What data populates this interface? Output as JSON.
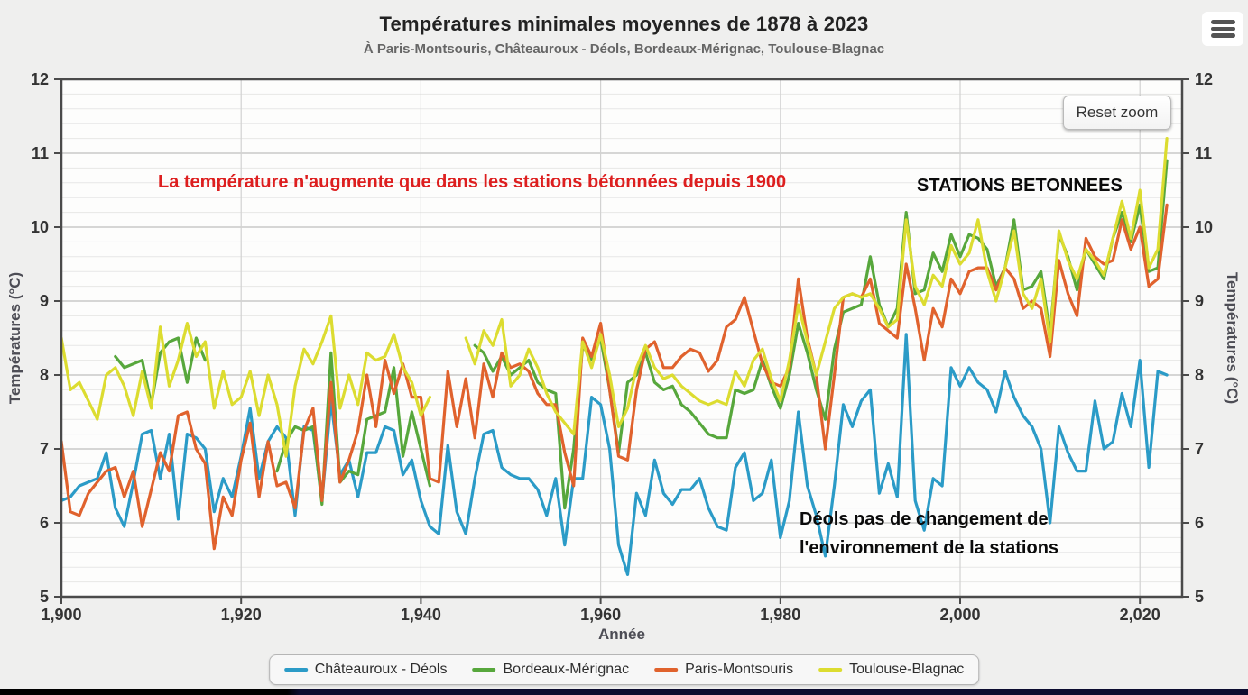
{
  "header": {
    "title": "Températures minimales moyennes de 1878 à 2023",
    "subtitle": "À Paris-Montsouris, Châteauroux - Déols, Bordeaux-Mérignac, Toulouse-Blagnac"
  },
  "icons": {
    "menu": "hamburger-menu"
  },
  "toolbar": {
    "reset_zoom_label": "Reset zoom"
  },
  "annotations": {
    "red_note": "La température n'augmente que dans les stations bétonnées depuis 1900",
    "stations_note": "STATIONS BETONNEES",
    "deols_note_line1": "Déols  pas de changement de",
    "deols_note_line2": "l'environnement de la stations"
  },
  "colors": {
    "annotation_red": "#dd1f1f",
    "annotation_black": "#0b0b0b",
    "bottom_bar": "#0c0c30",
    "axis": "#4a4a4a"
  },
  "legend": {
    "items": [
      {
        "label": "Châteauroux - Déols",
        "color": "#2b9bc7"
      },
      {
        "label": "Bordeaux-Mérignac",
        "color": "#57a73c"
      },
      {
        "label": "Paris-Montsouris",
        "color": "#e0622d"
      },
      {
        "label": "Toulouse-Blagnac",
        "color": "#dcdc30"
      }
    ]
  },
  "chart_data": {
    "type": "line",
    "title": "Températures minimales moyennes de 1878 à 2023",
    "subtitle": "À Paris-Montsouris, Châteauroux - Déols, Bordeaux-Mérignac, Toulouse-Blagnac",
    "xlabel": "Année",
    "ylabel_left": "Températures (°C)",
    "ylabel_right": "Températures (°C)",
    "xlim": [
      1900,
      2024.7
    ],
    "ylim": [
      5,
      12
    ],
    "grid": {
      "y_minor_step": 0.2,
      "y_major_step": 1,
      "x_major_step": 20
    },
    "legend_position": "bottom",
    "y_ticks": [
      5,
      6,
      7,
      8,
      9,
      10,
      11,
      12
    ],
    "x_ticks": [
      {
        "value": 1900,
        "label": "1,900"
      },
      {
        "value": 1920,
        "label": "1,920"
      },
      {
        "value": 1940,
        "label": "1,940"
      },
      {
        "value": 1960,
        "label": "1,960"
      },
      {
        "value": 1980,
        "label": "1,980"
      },
      {
        "value": 2000,
        "label": "2,000"
      },
      {
        "value": 2020,
        "label": "2,020"
      }
    ],
    "year_start": 1900,
    "year_end": 2023,
    "series": [
      {
        "name": "Châteauroux - Déols",
        "color": "#2b9bc7",
        "values": [
          6.3,
          6.35,
          6.5,
          6.55,
          6.6,
          6.95,
          6.2,
          5.95,
          6.55,
          7.2,
          7.25,
          6.6,
          7.2,
          6.05,
          7.2,
          7.15,
          7.0,
          6.15,
          6.6,
          6.35,
          6.9,
          7.55,
          6.6,
          7.1,
          7.3,
          7.15,
          6.1,
          7.3,
          7.25,
          6.3,
          7.65,
          6.65,
          6.85,
          6.35,
          6.95,
          6.95,
          7.3,
          7.25,
          6.65,
          6.85,
          6.3,
          5.95,
          5.85,
          7.05,
          6.15,
          5.85,
          6.6,
          7.2,
          7.25,
          6.75,
          6.65,
          6.6,
          6.6,
          6.45,
          6.1,
          6.6,
          5.7,
          6.6,
          6.6,
          7.7,
          7.6,
          7.0,
          5.7,
          5.3,
          6.4,
          6.1,
          6.85,
          6.4,
          6.25,
          6.45,
          6.45,
          6.6,
          6.2,
          5.95,
          5.9,
          6.75,
          6.95,
          6.3,
          6.4,
          6.85,
          5.8,
          6.3,
          7.5,
          6.5,
          6.1,
          5.55,
          6.5,
          7.6,
          7.3,
          7.65,
          7.8,
          6.4,
          6.8,
          6.35,
          8.55,
          6.3,
          5.9,
          6.6,
          6.5,
          8.1,
          7.85,
          8.1,
          7.9,
          7.8,
          7.5,
          8.05,
          7.7,
          7.45,
          7.3,
          7.0,
          6.0,
          7.3,
          6.95,
          6.7,
          6.7,
          7.65,
          7.0,
          7.1,
          7.75,
          7.3,
          8.2,
          6.75,
          8.05,
          8.0
        ]
      },
      {
        "name": "Bordeaux-Mérignac",
        "color": "#57a73c",
        "values": [
          null,
          null,
          null,
          null,
          null,
          null,
          8.25,
          8.1,
          8.15,
          8.2,
          7.6,
          8.3,
          8.45,
          8.5,
          7.9,
          8.5,
          8.2,
          null,
          null,
          null,
          null,
          null,
          null,
          null,
          6.7,
          7.1,
          7.3,
          7.25,
          7.3,
          6.25,
          8.3,
          6.55,
          6.7,
          6.65,
          7.4,
          7.45,
          7.5,
          8.1,
          6.9,
          7.5,
          7.0,
          6.5,
          null,
          null,
          null,
          null,
          8.4,
          8.3,
          8.05,
          8.25,
          8.0,
          8.1,
          8.2,
          7.9,
          7.8,
          7.75,
          6.2,
          7.0,
          8.4,
          8.2,
          8.5,
          7.8,
          6.95,
          7.9,
          8.0,
          8.3,
          7.9,
          7.8,
          7.85,
          7.6,
          7.5,
          7.35,
          7.2,
          7.15,
          7.15,
          7.8,
          7.75,
          7.8,
          8.2,
          7.85,
          7.55,
          8.0,
          8.7,
          8.3,
          7.8,
          7.4,
          8.35,
          8.85,
          8.9,
          8.95,
          9.6,
          8.95,
          8.65,
          8.9,
          10.2,
          9.1,
          9.15,
          9.65,
          9.4,
          9.9,
          9.6,
          9.9,
          9.85,
          9.7,
          9.2,
          9.45,
          10.1,
          9.15,
          9.2,
          9.4,
          8.55,
          9.9,
          9.6,
          9.15,
          9.7,
          9.5,
          9.3,
          9.85,
          10.2,
          9.8,
          10.3,
          9.4,
          9.45,
          10.9
        ]
      },
      {
        "name": "Paris-Montsouris",
        "color": "#e0622d",
        "values": [
          7.1,
          6.15,
          6.1,
          6.4,
          6.55,
          6.7,
          6.75,
          6.35,
          6.7,
          5.95,
          6.45,
          6.95,
          6.7,
          7.45,
          7.5,
          7.0,
          6.8,
          5.65,
          6.35,
          6.1,
          6.85,
          7.35,
          6.35,
          7.1,
          6.5,
          6.55,
          6.2,
          7.25,
          7.55,
          6.3,
          7.9,
          6.55,
          6.85,
          7.25,
          8.0,
          7.3,
          8.2,
          7.75,
          8.15,
          7.7,
          7.7,
          6.6,
          6.55,
          8.05,
          7.3,
          7.95,
          7.15,
          8.15,
          7.7,
          8.3,
          8.1,
          8.15,
          8.05,
          7.75,
          7.6,
          7.6,
          6.95,
          6.5,
          8.5,
          8.25,
          8.7,
          7.8,
          6.9,
          6.85,
          7.8,
          8.35,
          8.45,
          8.1,
          8.1,
          8.25,
          8.35,
          8.3,
          8.05,
          8.2,
          8.65,
          8.75,
          9.05,
          8.6,
          8.15,
          7.9,
          7.85,
          8.1,
          9.3,
          8.5,
          8.0,
          7.0,
          8.0,
          9.05,
          9.1,
          9.05,
          9.3,
          8.7,
          8.6,
          8.5,
          9.5,
          8.9,
          8.2,
          8.9,
          8.65,
          9.3,
          9.1,
          9.4,
          9.45,
          9.45,
          9.15,
          9.45,
          9.3,
          8.9,
          9.0,
          8.9,
          8.25,
          9.55,
          9.1,
          8.8,
          9.85,
          9.6,
          9.5,
          9.55,
          10.1,
          9.7,
          10.0,
          9.2,
          9.3,
          10.3
        ]
      },
      {
        "name": "Toulouse-Blagnac",
        "color": "#dcdc30",
        "values": [
          8.5,
          7.8,
          7.9,
          7.65,
          7.4,
          8.0,
          8.1,
          7.85,
          7.45,
          8.05,
          7.55,
          8.65,
          7.85,
          8.2,
          8.7,
          8.25,
          8.45,
          7.55,
          8.05,
          7.6,
          7.7,
          8.05,
          7.45,
          8.0,
          7.6,
          6.9,
          7.85,
          8.35,
          8.15,
          8.45,
          8.8,
          7.55,
          8.0,
          7.6,
          8.3,
          8.2,
          8.25,
          8.55,
          8.1,
          7.9,
          7.45,
          7.7,
          null,
          null,
          null,
          8.5,
          8.15,
          8.6,
          8.4,
          8.75,
          7.85,
          8.0,
          8.35,
          8.1,
          7.75,
          7.5,
          7.35,
          7.2,
          8.45,
          8.1,
          8.55,
          8.0,
          7.3,
          7.55,
          8.1,
          8.4,
          8.1,
          7.95,
          8.0,
          7.85,
          7.75,
          7.65,
          7.6,
          7.65,
          7.6,
          8.05,
          7.85,
          8.2,
          8.35,
          7.95,
          7.65,
          8.2,
          8.95,
          8.45,
          8.0,
          8.45,
          8.9,
          9.05,
          9.1,
          9.05,
          9.1,
          8.9,
          8.65,
          8.75,
          10.1,
          9.2,
          8.95,
          9.35,
          9.2,
          9.75,
          9.5,
          9.65,
          10.1,
          9.4,
          9.0,
          9.45,
          9.95,
          9.1,
          8.9,
          9.3,
          8.45,
          9.95,
          9.55,
          9.3,
          9.7,
          9.55,
          9.35,
          9.85,
          10.35,
          9.85,
          10.5,
          9.45,
          9.7,
          11.2
        ]
      }
    ]
  }
}
